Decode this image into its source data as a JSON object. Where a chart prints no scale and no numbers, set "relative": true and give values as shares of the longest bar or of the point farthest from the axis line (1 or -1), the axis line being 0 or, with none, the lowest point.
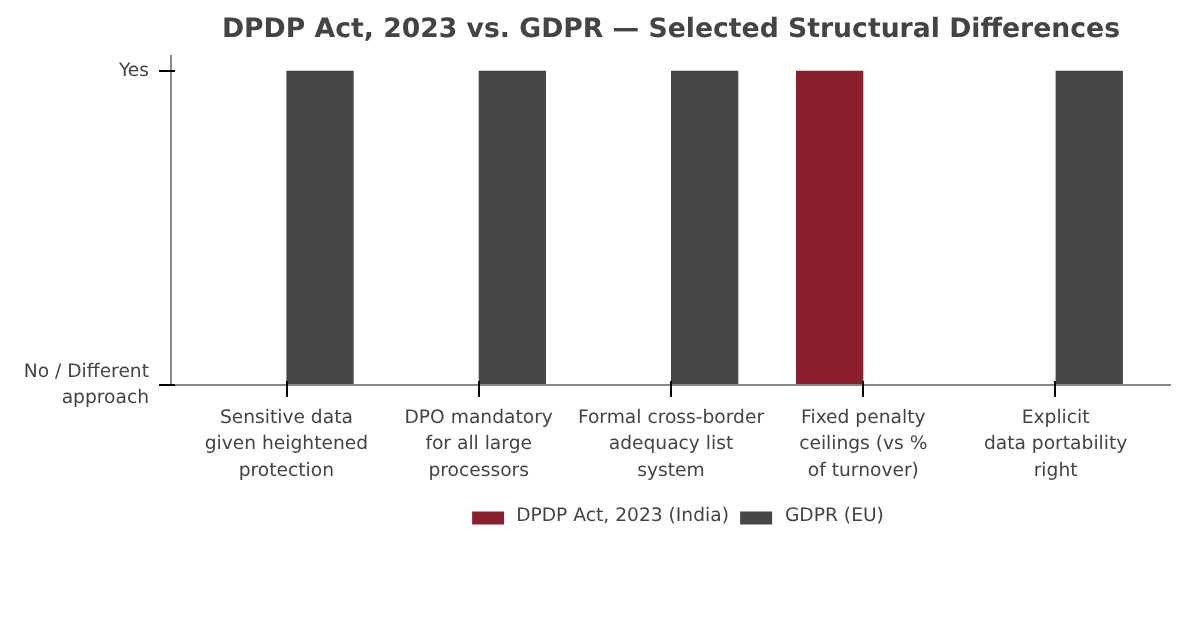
{
  "chart_data": {
    "type": "bar",
    "title": "DPDP Act, 2023 vs. GDPR — Selected Structural Differences",
    "categories": [
      "Sensitive data\ngiven heightened\nprotection",
      "DPO mandatory\nfor all large\nprocessors",
      "Formal cross-border\nadequacy list\nsystem",
      "Fixed penalty\nceilings (vs %\nof turnover)",
      "Explicit\ndata portability\nright"
    ],
    "series": [
      {
        "name": "DPDP Act, 2023 (India)",
        "color": "#8b1e2f",
        "values": [
          0,
          0,
          0,
          1,
          0
        ]
      },
      {
        "name": "GDPR (EU)",
        "color": "#474747",
        "values": [
          1,
          1,
          1,
          0,
          1
        ]
      }
    ],
    "relative": true,
    "annotations": [
      "No / Different\napproach",
      "Yes"
    ],
    "grid": false,
    "legend": "bottom"
  }
}
